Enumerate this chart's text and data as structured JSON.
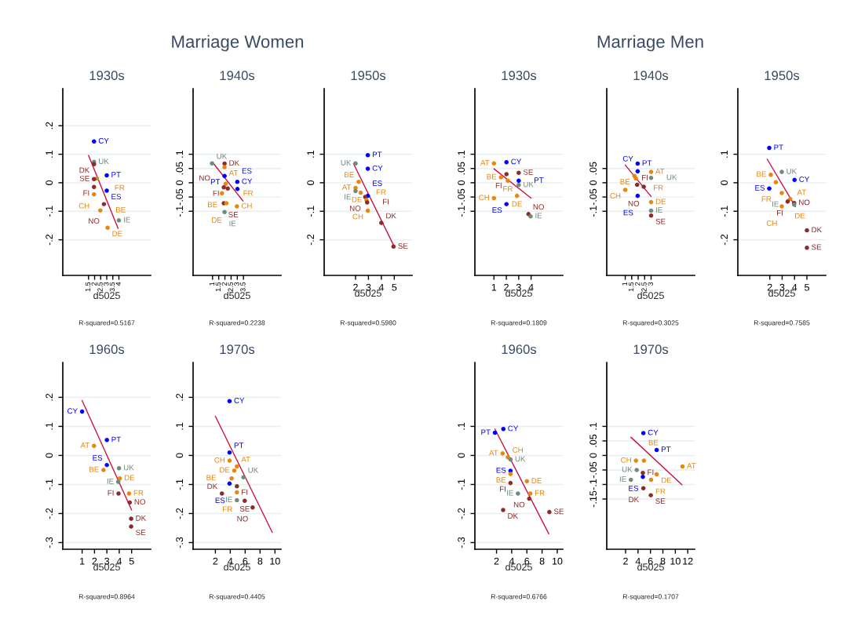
{
  "chart_data": [
    {
      "type": "other",
      "title": "Marriage Women"
    },
    {
      "type": "other",
      "title": "Marriage Men"
    },
    {
      "type": "scatter",
      "title": "1930s",
      "xlabel": "d5025",
      "grid": "y",
      "xlim": [
        -0.62,
        6.62
      ],
      "ylim": [
        -0.325,
        0.33
      ],
      "xticks": [
        1.5,
        2,
        2.5,
        3,
        3.5,
        4
      ],
      "yticks": [
        {
          "value": -0.2,
          "label": "-.2"
        },
        {
          "value": -0.1,
          "label": "-.1"
        },
        {
          "value": 0,
          "label": "0"
        },
        {
          "value": 0.1,
          "label": ".1"
        },
        {
          "value": 0.2,
          "label": ".2"
        }
      ],
      "series": [
        {
          "type": "scatter",
          "marker": "circle",
          "x": [
            1.95,
            1.95,
            1.95,
            3.0,
            2.2,
            1.95,
            1.95,
            3.0,
            1.95,
            2.77,
            2.47,
            4.0,
            3.07
          ],
          "values": [
            0.145,
            0.073,
            0.065,
            0.026,
            0.015,
            0.013,
            -0.015,
            -0.028,
            -0.041,
            -0.075,
            -0.097,
            -0.132,
            -0.158
          ],
          "colors": [
            "#0000ff",
            "#6e8b7d",
            "#8b2c2c",
            "#0000ff",
            "#e8870e",
            "#8b2c2c",
            "#8b2c2c",
            "#0000ff",
            "#e8870e",
            "#8b2c2c",
            "#e8870e",
            "#6e8b7d",
            "#e8870e"
          ]
        },
        {
          "type": "line",
          "x": [
            1.5,
            3.93
          ],
          "values": [
            0.096,
            -0.16
          ],
          "color": "#cc1040"
        }
      ],
      "annotations": [
        "R-squared=0.5167",
        {
          "text": "CY",
          "x": 1.95,
          "y": 0.145
        },
        {
          "text": "UK",
          "x": 1.95,
          "y": 0.073
        },
        {
          "text": "DK",
          "x": 1.95,
          "y": 0.065
        },
        {
          "text": "PT",
          "x": 3.0,
          "y": 0.026
        },
        {
          "text": "FR",
          "x": 2.2,
          "y": 0.015
        },
        {
          "text": "SE",
          "x": 1.95,
          "y": 0.013
        },
        {
          "text": "FI",
          "x": 1.95,
          "y": -0.015
        },
        {
          "text": "ES",
          "x": 3.0,
          "y": -0.028
        },
        {
          "text": "CH",
          "x": 1.95,
          "y": -0.041
        },
        {
          "text": "NO",
          "x": 2.77,
          "y": -0.075
        },
        {
          "text": "BE",
          "x": 2.47,
          "y": -0.097
        },
        {
          "text": "IE",
          "x": 4.0,
          "y": -0.132
        },
        {
          "text": "DE",
          "x": 3.07,
          "y": -0.158
        }
      ]
    },
    {
      "type": "scatter",
      "title": "1940s",
      "xlabel": "d5025",
      "grid": "y",
      "xlim": [
        -0.57,
        6.53
      ],
      "ylim": [
        -0.325,
        0.33
      ],
      "xticks": [
        1,
        1.5,
        2,
        2.5,
        3,
        3.5
      ],
      "yticks": [
        {
          "value": -0.1,
          "label": "-.1"
        },
        {
          "value": -0.05,
          "label": "-.05"
        },
        {
          "value": 0,
          "label": "0"
        },
        {
          "value": 0.05,
          "label": ".05"
        },
        {
          "value": 0.1,
          "label": ".1"
        }
      ],
      "series": [
        {
          "type": "scatter",
          "marker": "circle",
          "x": [
            0.96,
            1.97,
            1.97,
            1.97,
            3.0,
            2.06,
            3.01,
            1.91,
            2.23,
            1.76,
            1.91,
            2.12,
            2.97,
            1.97
          ],
          "values": [
            0.068,
            0.067,
            0.055,
            0.024,
            0.003,
            -0.004,
            -0.022,
            -0.016,
            -0.02,
            -0.037,
            -0.072,
            -0.072,
            -0.083,
            -0.103
          ],
          "colors": [
            "#6e8b7d",
            "#8b2c2c",
            "#e8870e",
            "#0000ff",
            "#0000ff",
            "#e8870e",
            "#0000ff",
            "#8b2c2c",
            "#8b2c2c",
            "#e8870e",
            "#8b2c2c",
            "#e8870e",
            "#e8870e",
            "#6e8b7d"
          ]
        },
        {
          "type": "line",
          "x": [
            1,
            3.46
          ],
          "values": [
            0.072,
            -0.064
          ],
          "color": "#cc1040"
        }
      ],
      "annotations": [
        "R-squared=0.2238",
        {
          "text": "UK",
          "x": 0.96,
          "y": 0.068
        },
        {
          "text": "DK",
          "x": 1.97,
          "y": 0.067
        },
        {
          "text": "AT",
          "x": 1.97,
          "y": 0.055
        },
        {
          "text": "PT",
          "x": 1.97,
          "y": 0.024
        },
        {
          "text": "CY",
          "x": 3.0,
          "y": 0.003
        },
        {
          "text": "FR",
          "x": 2.06,
          "y": -0.004
        },
        {
          "text": "ES",
          "x": 3.01,
          "y": -0.022
        },
        {
          "text": "FI",
          "x": 1.91,
          "y": -0.016
        },
        {
          "text": "NO",
          "x": 2.23,
          "y": -0.02
        },
        {
          "text": "BE",
          "x": 1.76,
          "y": -0.037
        },
        {
          "text": "SE",
          "x": 1.91,
          "y": -0.072
        },
        {
          "text": "DE",
          "x": 2.12,
          "y": -0.072
        },
        {
          "text": "CH",
          "x": 2.97,
          "y": -0.083
        },
        {
          "text": "IE",
          "x": 1.97,
          "y": -0.103
        }
      ]
    },
    {
      "type": "scatter",
      "title": "1950s",
      "xlabel": "d5025",
      "grid": "y",
      "xlim": [
        -0.43,
        6.38
      ],
      "ylim": [
        -0.325,
        0.33
      ],
      "xticks": [
        2,
        3,
        4,
        5
      ],
      "yticks": [
        {
          "value": -0.2,
          "label": "-.2"
        },
        {
          "value": -0.1,
          "label": "-.1"
        },
        {
          "value": 0,
          "label": "0"
        },
        {
          "value": 0.1,
          "label": ".1"
        }
      ],
      "series": [
        {
          "type": "scatter",
          "marker": "circle",
          "x": [
            2.95,
            2,
            2.95,
            2.24,
            2,
            2,
            2.4,
            2.95,
            2.75,
            2.85,
            2.9,
            2.95,
            4.0,
            4.94
          ],
          "values": [
            0.097,
            0.068,
            0.049,
            0.003,
            -0.018,
            -0.029,
            -0.035,
            -0.046,
            -0.05,
            -0.061,
            -0.069,
            -0.098,
            -0.141,
            -0.224
          ],
          "colors": [
            "#0000ff",
            "#6e8b7d",
            "#0000ff",
            "#e8870e",
            "#e8870e",
            "#6e8b7d",
            "#e8870e",
            "#0000ff",
            "#8b2c2c",
            "#e8870e",
            "#8b2c2c",
            "#e8870e",
            "#8b2c2c",
            "#8b2c2c"
          ]
        },
        {
          "type": "line",
          "x": [
            1.84,
            4.98
          ],
          "values": [
            0.067,
            -0.222
          ],
          "color": "#cc1040"
        }
      ],
      "annotations": [
        "R-squared=0.5980",
        {
          "text": "PT",
          "x": 2.95,
          "y": 0.097
        },
        {
          "text": "UK",
          "x": 2,
          "y": 0.068
        },
        {
          "text": "CY",
          "x": 2.95,
          "y": 0.049
        },
        {
          "text": "BE",
          "x": 2.24,
          "y": 0.003
        },
        {
          "text": "AT",
          "x": 2,
          "y": -0.018
        },
        {
          "text": "IE",
          "x": 2,
          "y": -0.029
        },
        {
          "text": "FR",
          "x": 2.4,
          "y": -0.035
        },
        {
          "text": "ES",
          "x": 2.95,
          "y": -0.046
        },
        {
          "text": "NO",
          "x": 2.75,
          "y": -0.05
        },
        {
          "text": "DE",
          "x": 2.85,
          "y": -0.061
        },
        {
          "text": "FI",
          "x": 2.9,
          "y": -0.069
        },
        {
          "text": "CH",
          "x": 2.95,
          "y": -0.098
        },
        {
          "text": "DK",
          "x": 4.0,
          "y": -0.141
        },
        {
          "text": "SE",
          "x": 4.94,
          "y": -0.224
        }
      ]
    },
    {
      "type": "scatter",
      "title": "1930s",
      "xlabel": "d5025",
      "grid": "y",
      "xlim": [
        -0.54,
        6.56
      ],
      "ylim": [
        -0.325,
        0.33
      ],
      "xticks": [
        1,
        2,
        3,
        4
      ],
      "yticks": [
        {
          "value": -0.1,
          "label": "-.1"
        },
        {
          "value": -0.05,
          "label": "-.05"
        },
        {
          "value": 0,
          "label": "0"
        },
        {
          "value": 0.05,
          "label": ".05"
        },
        {
          "value": 0.1,
          "label": ".1"
        }
      ],
      "series": [
        {
          "type": "scatter",
          "marker": "circle",
          "x": [
            1,
            2.01,
            1.57,
            2.01,
            3.0,
            2.12,
            3.0,
            3.0,
            2.86,
            1,
            2.01,
            3.79,
            3.96
          ],
          "values": [
            0.068,
            0.072,
            0.019,
            0.03,
            0.035,
            0.007,
            0.007,
            -0.008,
            -0.046,
            -0.054,
            -0.075,
            -0.11,
            -0.118
          ],
          "colors": [
            "#e8870e",
            "#0000ff",
            "#e8870e",
            "#8b2c2c",
            "#8b2c2c",
            "#e8870e",
            "#0000ff",
            "#6e8b7d",
            "#e8870e",
            "#e8870e",
            "#0000ff",
            "#8b2c2c",
            "#6e8b7d"
          ]
        },
        {
          "type": "line",
          "x": [
            1,
            4
          ],
          "values": [
            0.049,
            -0.054
          ],
          "color": "#cc1040"
        }
      ],
      "annotations": [
        "R-squared=0.1809",
        {
          "text": "AT",
          "x": 1,
          "y": 0.068
        },
        {
          "text": "CY",
          "x": 2.01,
          "y": 0.072
        },
        {
          "text": "BE",
          "x": 1.57,
          "y": 0.019
        },
        {
          "text": "FI",
          "x": 2.01,
          "y": 0.03
        },
        {
          "text": "SE",
          "x": 3.0,
          "y": 0.035
        },
        {
          "text": "FR",
          "x": 2.12,
          "y": 0.007
        },
        {
          "text": "PT",
          "x": 3.0,
          "y": 0.007
        },
        {
          "text": "UK",
          "x": 3.0,
          "y": -0.008
        },
        {
          "text": "DE",
          "x": 2.86,
          "y": -0.046
        },
        {
          "text": "CH",
          "x": 1,
          "y": -0.054
        },
        {
          "text": "ES",
          "x": 2.01,
          "y": -0.075
        },
        {
          "text": "NO",
          "x": 3.79,
          "y": -0.11
        },
        {
          "text": "IE",
          "x": 3.96,
          "y": -0.118
        }
      ]
    },
    {
      "type": "scatter",
      "title": "1940s",
      "xlabel": "d5025",
      "grid": "y",
      "xlim": [
        -0.43,
        6.37
      ],
      "ylim": [
        -0.325,
        0.33
      ],
      "xticks": [
        1,
        1.5,
        2,
        2.5,
        3
      ],
      "yticks": [
        {
          "value": -0.1,
          "label": "-.1"
        },
        {
          "value": -0.05,
          "label": "-.05"
        },
        {
          "value": 0,
          "label": "0"
        },
        {
          "value": 0.05,
          "label": ".05"
        }
      ],
      "series": [
        {
          "type": "scatter",
          "marker": "circle",
          "x": [
            1.96,
            1.96,
            3,
            1.71,
            1.82,
            3,
            1.92,
            2.43,
            1,
            1.96,
            3,
            3,
            3
          ],
          "values": [
            0.067,
            0.04,
            0.038,
            0.024,
            0.015,
            0.017,
            -0.007,
            -0.014,
            -0.025,
            -0.046,
            -0.068,
            -0.098,
            -0.115
          ],
          "colors": [
            "#0000ff",
            "#0000ff",
            "#e8870e",
            "#e8870e",
            "#e8870e",
            "#6e8b7d",
            "#8b2c2c",
            "#8b2c2c",
            "#e8870e",
            "#0000ff",
            "#e8870e",
            "#6e8b7d",
            "#8b2c2c"
          ]
        },
        {
          "type": "line",
          "x": [
            1,
            3
          ],
          "values": [
            0.062,
            -0.048
          ],
          "color": "#cc1040"
        }
      ],
      "annotations": [
        "R-squared=0.3025",
        {
          "text": "PT",
          "x": 1.96,
          "y": 0.067
        },
        {
          "text": "CY",
          "x": 1.96,
          "y": 0.04
        },
        {
          "text": "AT",
          "x": 3,
          "y": 0.038
        },
        {
          "text": "BE",
          "x": 1.71,
          "y": 0.024
        },
        {
          "text": "FR",
          "x": 1.82,
          "y": 0.015
        },
        {
          "text": "UK",
          "x": 3,
          "y": 0.017
        },
        {
          "text": "FI",
          "x": 1.92,
          "y": -0.007
        },
        {
          "text": "NO",
          "x": 2.43,
          "y": -0.014
        },
        {
          "text": "CH",
          "x": 1,
          "y": -0.025
        },
        {
          "text": "ES",
          "x": 1.96,
          "y": -0.046
        },
        {
          "text": "DE",
          "x": 3,
          "y": -0.068
        },
        {
          "text": "IE",
          "x": 3,
          "y": -0.098
        },
        {
          "text": "SE",
          "x": 3,
          "y": -0.115
        }
      ]
    },
    {
      "type": "scatter",
      "title": "1950s",
      "xlabel": "d5025",
      "grid": "y",
      "xlim": [
        -0.58,
        6.52
      ],
      "ylim": [
        -0.325,
        0.33
      ],
      "xticks": [
        2,
        3,
        4,
        5
      ],
      "yticks": [
        {
          "value": -0.2,
          "label": "-.2"
        },
        {
          "value": -0.1,
          "label": "-.1"
        },
        {
          "value": 0,
          "label": "0"
        },
        {
          "value": 0.1,
          "label": ".1"
        }
      ],
      "series": [
        {
          "type": "scatter",
          "marker": "circle",
          "x": [
            1.96,
            2.97,
            2.08,
            4.0,
            2.49,
            1.96,
            2.97,
            3.65,
            3.44,
            3.97,
            3.97,
            2.97,
            5,
            5
          ],
          "values": [
            0.122,
            0.038,
            0.028,
            0.01,
            0.002,
            -0.02,
            -0.036,
            -0.057,
            -0.066,
            -0.071,
            -0.077,
            -0.083,
            -0.167,
            -0.228
          ],
          "colors": [
            "#0000ff",
            "#6e8b7d",
            "#e8870e",
            "#0000ff",
            "#e8870e",
            "#0000ff",
            "#e8870e",
            "#e8870e",
            "#8b2c2c",
            "#8b2c2c",
            "#6e8b7d",
            "#e8870e",
            "#8b2c2c",
            "#8b2c2c"
          ]
        },
        {
          "type": "line",
          "x": [
            1.79,
            4.07
          ],
          "values": [
            0.083,
            -0.084
          ],
          "color": "#cc1040"
        }
      ],
      "annotations": [
        "R-squared=0.7585",
        {
          "text": "PT",
          "x": 1.96,
          "y": 0.122
        },
        {
          "text": "UK",
          "x": 2.97,
          "y": 0.038
        },
        {
          "text": "BE",
          "x": 2.08,
          "y": 0.028
        },
        {
          "text": "CY",
          "x": 4.0,
          "y": 0.01
        },
        {
          "text": "FR",
          "x": 2.49,
          "y": 0.002
        },
        {
          "text": "ES",
          "x": 1.96,
          "y": -0.02
        },
        {
          "text": "AT",
          "x": 2.97,
          "y": -0.036
        },
        {
          "text": "DE",
          "x": 3.65,
          "y": -0.057
        },
        {
          "text": "FI",
          "x": 3.44,
          "y": -0.066
        },
        {
          "text": "NO",
          "x": 3.97,
          "y": -0.071
        },
        {
          "text": "IE",
          "x": 3.97,
          "y": -0.077
        },
        {
          "text": "CH",
          "x": 2.97,
          "y": -0.083
        },
        {
          "text": "DK",
          "x": 5,
          "y": -0.167
        },
        {
          "text": "SE",
          "x": 5,
          "y": -0.228
        }
      ]
    },
    {
      "type": "scatter",
      "title": "1960s",
      "xlabel": "d5025",
      "grid": "y",
      "xlim": [
        -0.56,
        6.54
      ],
      "ylim": [
        -0.323,
        0.32
      ],
      "xticks": [
        1,
        2,
        3,
        4,
        5
      ],
      "yticks": [
        {
          "value": -0.3,
          "label": "-.3"
        },
        {
          "value": -0.2,
          "label": "-.2"
        },
        {
          "value": -0.1,
          "label": "-.1"
        },
        {
          "value": 0,
          "label": "0"
        },
        {
          "value": 0.1,
          "label": ".1"
        },
        {
          "value": 0.2,
          "label": ".2"
        }
      ],
      "series": [
        {
          "type": "scatter",
          "marker": "circle",
          "x": [
            1,
            3,
            1.96,
            3,
            2.73,
            3.98,
            4.04,
            3.92,
            3.94,
            4.79,
            4.85,
            4.96,
            4.96
          ],
          "values": [
            0.151,
            0.053,
            0.033,
            -0.033,
            -0.05,
            -0.044,
            -0.079,
            -0.091,
            -0.131,
            -0.131,
            -0.162,
            -0.218,
            -0.245
          ],
          "colors": [
            "#0000ff",
            "#0000ff",
            "#e8870e",
            "#0000ff",
            "#e8870e",
            "#6e8b7d",
            "#e8870e",
            "#6e8b7d",
            "#8b2c2c",
            "#e8870e",
            "#8b2c2c",
            "#8b2c2c",
            "#8b2c2c"
          ]
        },
        {
          "type": "line",
          "x": [
            1,
            5
          ],
          "values": [
            0.189,
            -0.188
          ],
          "color": "#cc1040"
        }
      ],
      "annotations": [
        "R-squared=0.8964",
        {
          "text": "CY",
          "x": 1,
          "y": 0.151
        },
        {
          "text": "PT",
          "x": 3,
          "y": 0.053
        },
        {
          "text": "AT",
          "x": 1.96,
          "y": 0.033
        },
        {
          "text": "ES",
          "x": 3,
          "y": -0.033
        },
        {
          "text": "BE",
          "x": 2.73,
          "y": -0.05
        },
        {
          "text": "UK",
          "x": 3.98,
          "y": -0.044
        },
        {
          "text": "DE",
          "x": 4.04,
          "y": -0.079
        },
        {
          "text": "IE",
          "x": 3.92,
          "y": -0.091
        },
        {
          "text": "FI",
          "x": 3.94,
          "y": -0.131
        },
        {
          "text": "FR",
          "x": 4.79,
          "y": -0.131
        },
        {
          "text": "NO",
          "x": 4.85,
          "y": -0.162
        },
        {
          "text": "DK",
          "x": 4.96,
          "y": -0.218
        },
        {
          "text": "SE",
          "x": 4.96,
          "y": -0.245
        }
      ]
    },
    {
      "type": "scatter",
      "title": "1970s",
      "xlabel": "d5025",
      "grid": "y",
      "xlim": [
        -0.99,
        10.81
      ],
      "ylim": [
        -0.323,
        0.32
      ],
      "xticks": [
        2,
        4,
        6,
        8,
        10
      ],
      "yticks": [
        {
          "value": -0.3,
          "label": "-.3"
        },
        {
          "value": -0.2,
          "label": "-.2"
        },
        {
          "value": -0.1,
          "label": "-.1"
        },
        {
          "value": 0,
          "label": "0"
        },
        {
          "value": 0.1,
          "label": ".1"
        },
        {
          "value": 0.2,
          "label": ".2"
        }
      ],
      "series": [
        {
          "type": "scatter",
          "marker": "circle",
          "x": [
            3.9,
            3.9,
            3.9,
            4.89,
            4.54,
            4.18,
            5.77,
            3.9,
            4.89,
            4.89,
            2.88,
            4.89,
            5.94,
            7.0
          ],
          "values": [
            0.187,
            0.01,
            -0.018,
            -0.038,
            -0.052,
            -0.079,
            -0.075,
            -0.097,
            -0.106,
            -0.127,
            -0.131,
            -0.154,
            -0.156,
            -0.179
          ],
          "colors": [
            "#0000ff",
            "#0000ff",
            "#e8870e",
            "#e8870e",
            "#e8870e",
            "#e8870e",
            "#6e8b7d",
            "#0000ff",
            "#8b2c2c",
            "#e8870e",
            "#8b2c2c",
            "#6e8b7d",
            "#8b2c2c",
            "#8b2c2c"
          ]
        },
        {
          "type": "line",
          "x": [
            2,
            9.64
          ],
          "values": [
            0.135,
            -0.265
          ],
          "color": "#cc1040"
        }
      ],
      "annotations": [
        "R-squared=0.4405",
        {
          "text": "CY",
          "x": 3.9,
          "y": 0.187
        },
        {
          "text": "PT",
          "x": 3.9,
          "y": 0.01
        },
        {
          "text": "CH",
          "x": 3.9,
          "y": -0.018
        },
        {
          "text": "AT",
          "x": 4.89,
          "y": -0.038
        },
        {
          "text": "DE",
          "x": 4.54,
          "y": -0.052
        },
        {
          "text": "BE",
          "x": 4.18,
          "y": -0.079
        },
        {
          "text": "UK",
          "x": 5.77,
          "y": -0.075
        },
        {
          "text": "ES",
          "x": 3.9,
          "y": -0.097
        },
        {
          "text": "FI",
          "x": 4.89,
          "y": -0.106
        },
        {
          "text": "FR",
          "x": 4.89,
          "y": -0.127
        },
        {
          "text": "DK",
          "x": 2.88,
          "y": -0.131
        },
        {
          "text": "IE",
          "x": 4.89,
          "y": -0.154
        },
        {
          "text": "SE",
          "x": 5.94,
          "y": -0.156
        },
        {
          "text": "NO",
          "x": 7.0,
          "y": -0.179
        }
      ]
    },
    {
      "type": "scatter",
      "title": "1960s",
      "xlabel": "d5025",
      "grid": "y",
      "xlim": [
        -0.85,
        10.73
      ],
      "ylim": [
        -0.323,
        0.32
      ],
      "xticks": [
        2,
        4,
        6,
        8,
        10
      ],
      "yticks": [
        {
          "value": -0.3,
          "label": "-.3"
        },
        {
          "value": -0.2,
          "label": "-.2"
        },
        {
          "value": -0.1,
          "label": "-.1"
        },
        {
          "value": 0,
          "label": "0"
        },
        {
          "value": 0.1,
          "label": ".1"
        }
      ],
      "series": [
        {
          "type": "scatter",
          "marker": "circle",
          "x": [
            2.9,
            1.79,
            2.8,
            3.5,
            3.84,
            3.84,
            3.84,
            6.0,
            3.84,
            4.82,
            6.45,
            6.31,
            2.87,
            8.96
          ],
          "values": [
            0.091,
            0.078,
            0.007,
            -0.006,
            -0.014,
            -0.053,
            -0.064,
            -0.089,
            -0.095,
            -0.131,
            -0.131,
            -0.149,
            -0.188,
            -0.195
          ],
          "colors": [
            "#0000ff",
            "#0000ff",
            "#e8870e",
            "#e8870e",
            "#6e8b7d",
            "#0000ff",
            "#e8870e",
            "#e8870e",
            "#8b2c2c",
            "#6e8b7d",
            "#e8870e",
            "#8b2c2c",
            "#8b2c2c",
            "#8b2c2c"
          ]
        },
        {
          "type": "line",
          "x": [
            1.79,
            8.89
          ],
          "values": [
            0.091,
            -0.27
          ],
          "color": "#cc1040"
        }
      ],
      "annotations": [
        "R-squared=0.6766",
        {
          "text": "CY",
          "x": 2.9,
          "y": 0.091
        },
        {
          "text": "PT",
          "x": 1.79,
          "y": 0.078
        },
        {
          "text": "AT",
          "x": 2.8,
          "y": 0.007
        },
        {
          "text": "CH",
          "x": 3.5,
          "y": -0.006
        },
        {
          "text": "UK",
          "x": 3.84,
          "y": -0.014
        },
        {
          "text": "ES",
          "x": 3.84,
          "y": -0.053
        },
        {
          "text": "BE",
          "x": 3.84,
          "y": -0.064
        },
        {
          "text": "DE",
          "x": 6.0,
          "y": -0.089
        },
        {
          "text": "FI",
          "x": 3.84,
          "y": -0.095
        },
        {
          "text": "IE",
          "x": 4.82,
          "y": -0.131
        },
        {
          "text": "FR",
          "x": 6.45,
          "y": -0.131
        },
        {
          "text": "NO",
          "x": 6.31,
          "y": -0.149
        },
        {
          "text": "DK",
          "x": 2.87,
          "y": -0.188
        },
        {
          "text": "SE",
          "x": 8.96,
          "y": -0.195
        }
      ]
    },
    {
      "type": "scatter",
      "title": "1970s",
      "xlabel": "d5025",
      "grid": "y",
      "xlim": [
        -1.03,
        13.11
      ],
      "ylim": [
        -0.323,
        0.32
      ],
      "xticks": [
        2,
        4,
        6,
        8,
        10,
        12
      ],
      "yticks": [
        {
          "value": -0.15,
          "label": "-.15"
        },
        {
          "value": -0.1,
          "label": "-.1"
        },
        {
          "value": -0.05,
          "label": "-.05"
        },
        {
          "value": 0,
          "label": "0"
        },
        {
          "value": 0.05,
          "label": ".05"
        },
        {
          "value": 0.1,
          "label": ".1"
        }
      ],
      "series": [
        {
          "type": "scatter",
          "marker": "circle",
          "x": [
            4.86,
            7.0,
            3.67,
            4.95,
            11.15,
            3.79,
            4.78,
            7.0,
            4.78,
            6.1,
            2.85,
            4.86,
            6.06
          ],
          "values": [
            0.077,
            0.019,
            -0.018,
            -0.018,
            -0.038,
            -0.05,
            -0.06,
            -0.065,
            -0.074,
            -0.084,
            -0.084,
            -0.113,
            -0.137
          ],
          "colors": [
            "#0000ff",
            "#0000ff",
            "#e8870e",
            "#e8870e",
            "#e8870e",
            "#6e8b7d",
            "#8b2c2c",
            "#e8870e",
            "#0000ff",
            "#e8870e",
            "#6e8b7d",
            "#8b2c2c",
            "#8b2c2c"
          ]
        },
        {
          "type": "line",
          "x": [
            2.85,
            11.06
          ],
          "values": [
            0.063,
            -0.101
          ],
          "color": "#cc1040"
        }
      ],
      "annotations": [
        "R-squared=0.1707",
        {
          "text": "CY",
          "x": 4.86,
          "y": 0.077
        },
        {
          "text": "PT",
          "x": 7.0,
          "y": 0.019
        },
        {
          "text": "CH",
          "x": 3.67,
          "y": -0.018
        },
        {
          "text": "BE",
          "x": 4.95,
          "y": -0.018
        },
        {
          "text": "AT",
          "x": 11.15,
          "y": -0.038
        },
        {
          "text": "UK",
          "x": 3.79,
          "y": -0.05
        },
        {
          "text": "FI",
          "x": 4.78,
          "y": -0.06
        },
        {
          "text": "DE",
          "x": 7.0,
          "y": -0.065
        },
        {
          "text": "ES",
          "x": 4.78,
          "y": -0.074
        },
        {
          "text": "FR",
          "x": 6.1,
          "y": -0.084
        },
        {
          "text": "IE",
          "x": 2.85,
          "y": -0.084
        },
        {
          "text": "DK",
          "x": 4.86,
          "y": -0.113
        },
        {
          "text": "SE",
          "x": 6.06,
          "y": -0.137
        }
      ]
    }
  ]
}
